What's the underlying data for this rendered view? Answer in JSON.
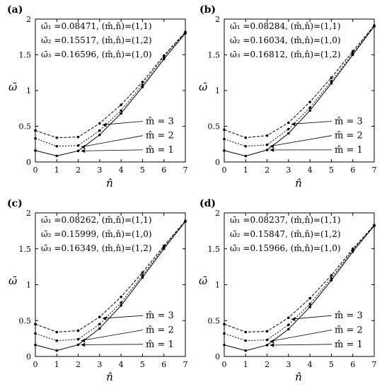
{
  "chart_data": [
    {
      "panel": "(a)",
      "type": "line",
      "xlabel": "n̂",
      "ylabel": "ω̄",
      "xlim": [
        0,
        7
      ],
      "ylim": [
        0,
        2
      ],
      "xticks": [
        "0",
        "1",
        "2",
        "3",
        "4",
        "5",
        "6",
        "7"
      ],
      "yticks": [
        "0",
        "0.5",
        "1",
        "1.5",
        "2"
      ],
      "x": [
        0,
        1,
        2,
        3,
        4,
        5,
        6,
        7
      ],
      "series": [
        {
          "label": "m̂ = 1",
          "values": [
            0.16,
            0.085,
            0.155,
            0.38,
            0.68,
            1.05,
            1.44,
            1.8
          ]
        },
        {
          "label": "m̂ = 2",
          "values": [
            0.33,
            0.22,
            0.23,
            0.44,
            0.72,
            1.08,
            1.47,
            1.81
          ]
        },
        {
          "label": "m̂ = 3",
          "values": [
            0.44,
            0.34,
            0.35,
            0.54,
            0.8,
            1.12,
            1.49,
            1.82
          ]
        }
      ],
      "annotations": [
        "ω̄₁ =0.08471, (m̂,n̂)=(1,1)",
        "ω̄₂ =0.15517, (m̂,n̂)=(1,2)",
        "ω̄₃ =0.16596, (m̂,n̂)=(1,0)"
      ]
    },
    {
      "panel": "(b)",
      "type": "line",
      "xlabel": "n̂",
      "ylabel": "ω̄",
      "xlim": [
        0,
        7
      ],
      "ylim": [
        0,
        2
      ],
      "xticks": [
        "0",
        "1",
        "2",
        "3",
        "4",
        "5",
        "6",
        "7"
      ],
      "yticks": [
        "0",
        "0.5",
        "1",
        "1.5",
        "2"
      ],
      "x": [
        0,
        1,
        2,
        3,
        4,
        5,
        6,
        7
      ],
      "series": [
        {
          "label": "m̂ = 1",
          "values": [
            0.16,
            0.083,
            0.168,
            0.4,
            0.72,
            1.1,
            1.5,
            1.9
          ]
        },
        {
          "label": "m̂ = 2",
          "values": [
            0.32,
            0.22,
            0.24,
            0.46,
            0.76,
            1.13,
            1.52,
            1.9
          ]
        },
        {
          "label": "m̂ = 3",
          "values": [
            0.45,
            0.34,
            0.37,
            0.55,
            0.84,
            1.18,
            1.55,
            1.91
          ]
        }
      ],
      "annotations": [
        "ω̄₁ =0.08284, (m̂,n̂)=(1,1)",
        "ω̄₂ =0.16034, (m̂,n̂)=(1,0)",
        "ω̄₃ =0.16812, (m̂,n̂)=(1,2)"
      ]
    },
    {
      "panel": "(c)",
      "type": "line",
      "xlabel": "n̂",
      "ylabel": "ω̄",
      "xlim": [
        0,
        7
      ],
      "ylim": [
        0,
        2
      ],
      "xticks": [
        "0",
        "1",
        "2",
        "3",
        "4",
        "5",
        "6",
        "7"
      ],
      "yticks": [
        "0",
        "0.5",
        "1",
        "1.5",
        "2"
      ],
      "x": [
        0,
        1,
        2,
        3,
        4,
        5,
        6,
        7
      ],
      "series": [
        {
          "label": "m̂ = 1",
          "values": [
            0.16,
            0.083,
            0.163,
            0.39,
            0.71,
            1.1,
            1.5,
            1.88
          ]
        },
        {
          "label": "m̂ = 2",
          "values": [
            0.32,
            0.22,
            0.24,
            0.45,
            0.75,
            1.13,
            1.52,
            1.88
          ]
        },
        {
          "label": "m̂ = 3",
          "values": [
            0.45,
            0.34,
            0.36,
            0.55,
            0.83,
            1.17,
            1.54,
            1.89
          ]
        }
      ],
      "annotations": [
        "ω̄₁ =0.08262, (m̂,n̂)=(1,1)",
        "ω̄₂ =0.15999, (m̂,n̂)=(1,0)",
        "ω̄₃ =0.16349, (m̂,n̂)=(1,2)"
      ]
    },
    {
      "panel": "(d)",
      "type": "line",
      "xlabel": "n̂",
      "ylabel": "ω̄",
      "xlim": [
        0,
        7
      ],
      "ylim": [
        0,
        2
      ],
      "xticks": [
        "0",
        "1",
        "2",
        "3",
        "4",
        "5",
        "6",
        "7"
      ],
      "yticks": [
        "0",
        "0.5",
        "1",
        "1.5",
        "2"
      ],
      "x": [
        0,
        1,
        2,
        3,
        4,
        5,
        6,
        7
      ],
      "series": [
        {
          "label": "m̂ = 1",
          "values": [
            0.16,
            0.082,
            0.158,
            0.38,
            0.69,
            1.06,
            1.46,
            1.82
          ]
        },
        {
          "label": "m̂ = 2",
          "values": [
            0.32,
            0.22,
            0.23,
            0.44,
            0.73,
            1.09,
            1.48,
            1.82
          ]
        },
        {
          "label": "m̂ = 3",
          "values": [
            0.45,
            0.34,
            0.35,
            0.54,
            0.81,
            1.13,
            1.5,
            1.83
          ]
        }
      ],
      "annotations": [
        "ω̄₁ =0.08237, (m̂,n̂)=(1,1)",
        "ω̄₂ =0.15847, (m̂,n̂)=(1,2)",
        "ω̄₃ =0.15966, (m̂,n̂)=(1,0)"
      ]
    }
  ]
}
